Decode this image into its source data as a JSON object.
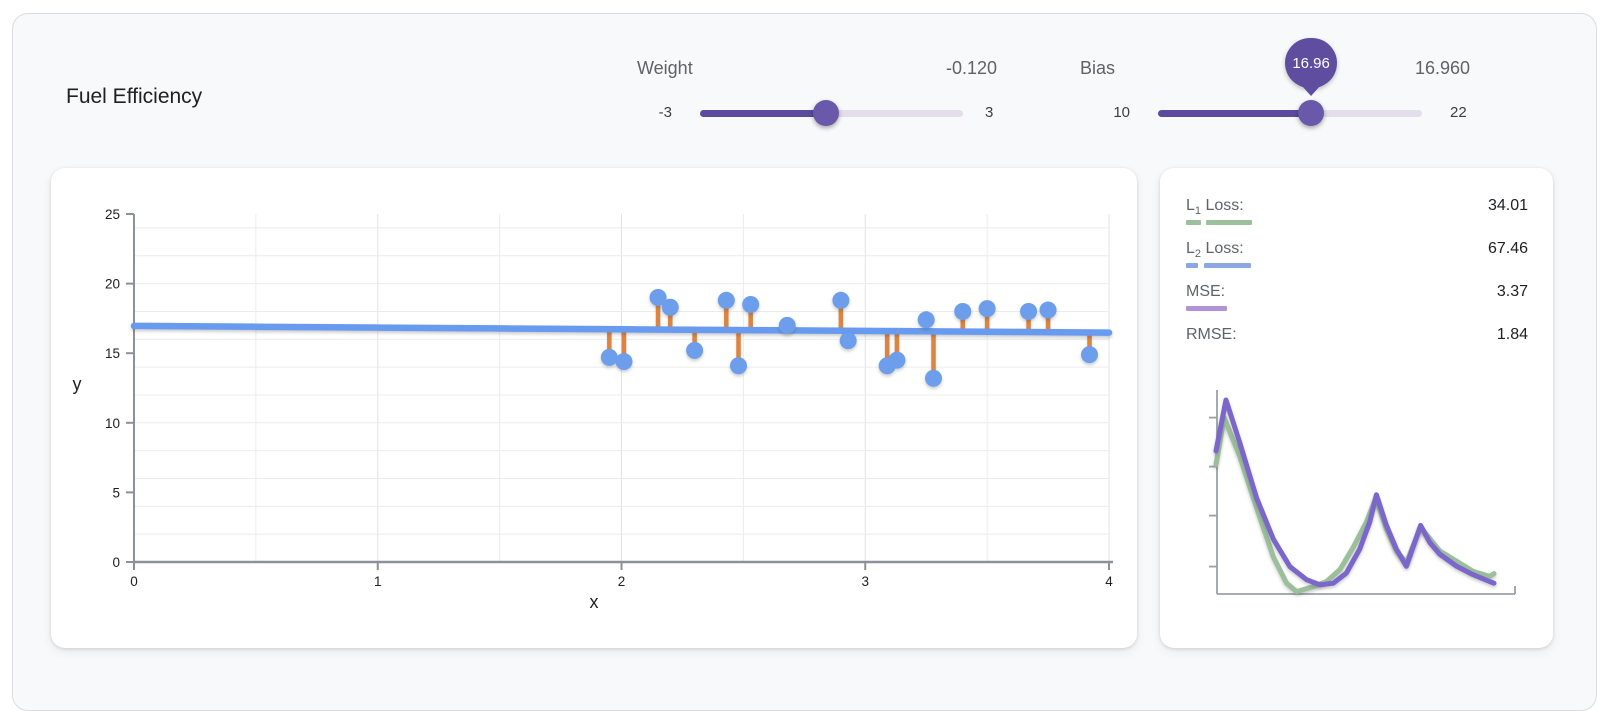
{
  "title": "Fuel Efficiency",
  "controls": {
    "weight": {
      "label": "Weight",
      "value_display": "-0.120",
      "value": -0.12,
      "min": -3,
      "max": 3,
      "min_label": "-3",
      "max_label": "3"
    },
    "bias": {
      "label": "Bias",
      "value_display": "16.960",
      "value": 16.96,
      "tooltip": "16.96",
      "min": 10,
      "max": 22,
      "min_label": "10",
      "max_label": "22"
    }
  },
  "losses": {
    "rows": [
      {
        "label": "L",
        "sub": "1",
        "rest": " Loss:",
        "value": "34.01",
        "underline": {
          "color": "#9bc09b",
          "segments": [
            [
              0,
              15
            ],
            [
              20,
              46
            ]
          ]
        }
      },
      {
        "label": "L",
        "sub": "2",
        "rest": " Loss:",
        "value": "67.46",
        "underline": {
          "color": "#8ca8e0",
          "segments": [
            [
              0,
              12
            ],
            [
              18,
              47
            ]
          ]
        }
      },
      {
        "label": "MSE:",
        "sub": "",
        "rest": "",
        "value": "3.37",
        "underline": {
          "color": "#b293d9",
          "segments": [
            [
              0,
              41
            ]
          ]
        }
      },
      {
        "label": "RMSE:",
        "sub": "",
        "rest": "",
        "value": "1.84",
        "underline": null
      }
    ]
  },
  "colors": {
    "accent_purple": "#5c4a9e",
    "thumb_purple": "#6a58ab",
    "track_rest": "#e3dee9",
    "point_blue": "#6d9eeb",
    "line_blue": "#689bf0",
    "residual_orange": "#dd8440",
    "loss_green": "#9bbf9b",
    "loss_purple": "#7b66cc",
    "axis_gray": "#8a9199",
    "grid_gray": "#ececec"
  },
  "chart_data": [
    {
      "type": "scatter",
      "title": "",
      "xlabel": "x",
      "ylabel": "y",
      "xlim": [
        0,
        4
      ],
      "ylim": [
        0,
        25
      ],
      "xticks": [
        0,
        1,
        2,
        3,
        4
      ],
      "yticks": [
        0,
        5,
        10,
        15,
        20,
        25
      ],
      "grid": {
        "x_step": 0.5,
        "y_step": 2,
        "on": true
      },
      "points": [
        [
          1.95,
          14.7
        ],
        [
          2.01,
          14.4
        ],
        [
          2.15,
          19.0
        ],
        [
          2.2,
          18.3
        ],
        [
          2.3,
          15.2
        ],
        [
          2.43,
          18.8
        ],
        [
          2.48,
          14.1
        ],
        [
          2.53,
          18.5
        ],
        [
          2.68,
          17.0
        ],
        [
          2.9,
          18.8
        ],
        [
          2.93,
          15.9
        ],
        [
          3.09,
          14.1
        ],
        [
          3.13,
          14.5
        ],
        [
          3.25,
          17.4
        ],
        [
          3.28,
          13.2
        ],
        [
          3.4,
          18.0
        ],
        [
          3.5,
          18.2
        ],
        [
          3.67,
          18.0
        ],
        [
          3.75,
          18.1
        ],
        [
          3.92,
          14.9
        ]
      ],
      "regression": {
        "weight": -0.12,
        "bias": 16.96
      },
      "show_residuals": true
    },
    {
      "type": "line",
      "title": "loss history",
      "xlabel": "",
      "ylabel": "",
      "legend_position": "none",
      "series": [
        {
          "name": "L1 loss (green)",
          "color": "#9bbf9b",
          "points": [
            [
              0,
              0.66
            ],
            [
              0.029,
              0.9
            ],
            [
              0.086,
              0.7
            ],
            [
              0.146,
              0.44
            ],
            [
              0.206,
              0.19
            ],
            [
              0.254,
              0.055
            ],
            [
              0.29,
              0.012
            ],
            [
              0.35,
              0.038
            ],
            [
              0.398,
              0.064
            ],
            [
              0.446,
              0.125
            ],
            [
              0.493,
              0.237
            ],
            [
              0.541,
              0.367
            ],
            [
              0.575,
              0.489
            ],
            [
              0.613,
              0.333
            ],
            [
              0.649,
              0.22
            ],
            [
              0.685,
              0.159
            ],
            [
              0.736,
              0.341
            ],
            [
              0.805,
              0.22
            ],
            [
              0.865,
              0.168
            ],
            [
              0.924,
              0.116
            ],
            [
              0.984,
              0.09
            ],
            [
              1,
              0.104
            ]
          ]
        },
        {
          "name": "MSE (purple)",
          "color": "#7b66cc",
          "points": [
            [
              0,
              0.73
            ],
            [
              0.036,
              0.99
            ],
            [
              0.086,
              0.77
            ],
            [
              0.146,
              0.49
            ],
            [
              0.206,
              0.28
            ],
            [
              0.266,
              0.14
            ],
            [
              0.326,
              0.073
            ],
            [
              0.374,
              0.047
            ],
            [
              0.422,
              0.055
            ],
            [
              0.469,
              0.107
            ],
            [
              0.517,
              0.229
            ],
            [
              0.553,
              0.367
            ],
            [
              0.577,
              0.506
            ],
            [
              0.613,
              0.35
            ],
            [
              0.649,
              0.229
            ],
            [
              0.685,
              0.142
            ],
            [
              0.736,
              0.35
            ],
            [
              0.769,
              0.263
            ],
            [
              0.805,
              0.203
            ],
            [
              0.865,
              0.142
            ],
            [
              0.924,
              0.099
            ],
            [
              0.984,
              0.064
            ],
            [
              1,
              0.055
            ]
          ]
        }
      ]
    }
  ]
}
